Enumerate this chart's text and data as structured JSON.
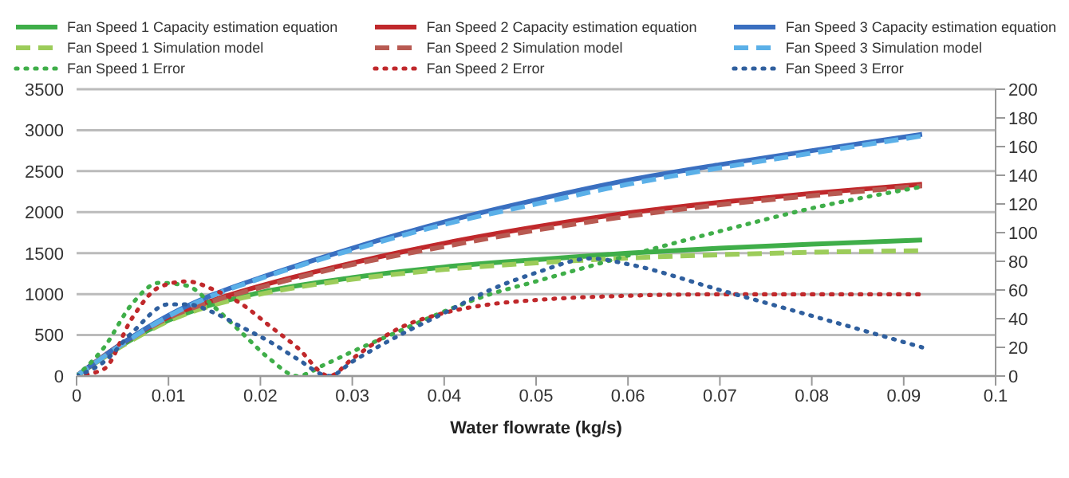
{
  "chart_data": {
    "type": "line",
    "xlabel": "Water flowrate (kg/s)",
    "xlim": [
      0,
      0.1
    ],
    "xticks": [
      0,
      0.01,
      0.02,
      0.03,
      0.04,
      0.05,
      0.06,
      0.07,
      0.08,
      0.09,
      0.1
    ],
    "ylim": [
      0,
      3500
    ],
    "yticks": [
      0,
      500,
      1000,
      1500,
      2000,
      2500,
      3000,
      3500
    ],
    "y2lim": [
      0,
      200
    ],
    "y2ticks": [
      0,
      20,
      40,
      60,
      80,
      100,
      120,
      140,
      160,
      180,
      200
    ],
    "grid": "y",
    "legend": "top",
    "marker": "none",
    "series": [
      {
        "name": "Fan Speed 1 Capacity estimation equation",
        "color": "#3fae49",
        "line_style": "solid",
        "x": [
          0,
          0.005,
          0.01,
          0.015,
          0.02,
          0.03,
          0.04,
          0.05,
          0.06,
          0.07,
          0.08,
          0.092
        ],
        "values": [
          0,
          380,
          680,
          880,
          1020,
          1200,
          1330,
          1420,
          1500,
          1560,
          1610,
          1660
        ]
      },
      {
        "name": "Fan Speed 2 Capacity estimation equation",
        "color": "#c0282b",
        "line_style": "solid",
        "x": [
          0,
          0.005,
          0.01,
          0.015,
          0.02,
          0.03,
          0.04,
          0.05,
          0.06,
          0.07,
          0.08,
          0.092
        ],
        "values": [
          0,
          400,
          720,
          930,
          1100,
          1380,
          1620,
          1820,
          1990,
          2120,
          2230,
          2340
        ]
      },
      {
        "name": "Fan Speed 3 Capacity estimation equation",
        "color": "#3a6fc0",
        "line_style": "solid",
        "x": [
          0,
          0.005,
          0.01,
          0.015,
          0.02,
          0.03,
          0.04,
          0.05,
          0.06,
          0.07,
          0.08,
          0.092
        ],
        "values": [
          0,
          400,
          740,
          1000,
          1200,
          1560,
          1880,
          2150,
          2390,
          2580,
          2750,
          2950
        ]
      },
      {
        "name": "Fan Speed 1 Simulation model",
        "color": "#9ccc5a",
        "line_style": "dashed",
        "x": [
          0,
          0.005,
          0.01,
          0.015,
          0.02,
          0.03,
          0.04,
          0.05,
          0.06,
          0.07,
          0.08,
          0.092
        ],
        "values": [
          0,
          370,
          670,
          870,
          1000,
          1180,
          1300,
          1380,
          1440,
          1480,
          1510,
          1530
        ]
      },
      {
        "name": "Fan Speed 2 Simulation model",
        "color": "#b85a52",
        "line_style": "dashed",
        "x": [
          0,
          0.005,
          0.01,
          0.015,
          0.02,
          0.03,
          0.04,
          0.05,
          0.06,
          0.07,
          0.08,
          0.092
        ],
        "values": [
          0,
          390,
          710,
          920,
          1080,
          1360,
          1580,
          1780,
          1950,
          2090,
          2200,
          2320
        ]
      },
      {
        "name": "Fan Speed 3 Simulation model",
        "color": "#5bb0e8",
        "line_style": "dashed",
        "x": [
          0,
          0.005,
          0.01,
          0.015,
          0.02,
          0.03,
          0.04,
          0.05,
          0.06,
          0.07,
          0.08,
          0.092
        ],
        "values": [
          0,
          390,
          730,
          990,
          1190,
          1540,
          1850,
          2100,
          2340,
          2540,
          2720,
          2930
        ]
      },
      {
        "name": "Fan Speed 1 Error",
        "color": "#3fae49",
        "line_style": "dotted",
        "axis": "y2",
        "x": [
          0,
          0.003,
          0.006,
          0.009,
          0.012,
          0.015,
          0.018,
          0.021,
          0.024,
          0.027,
          0.03,
          0.035,
          0.04,
          0.045,
          0.05,
          0.06,
          0.07,
          0.08,
          0.092
        ],
        "values": [
          0,
          20,
          50,
          65,
          63,
          48,
          30,
          12,
          0,
          8,
          17,
          31,
          45,
          57,
          66,
          84,
          101,
          117,
          132
        ]
      },
      {
        "name": "Fan Speed 2 Error",
        "color": "#c0282b",
        "line_style": "dotted",
        "axis": "y2",
        "x": [
          0,
          0.003,
          0.006,
          0.009,
          0.012,
          0.015,
          0.018,
          0.021,
          0.024,
          0.0275,
          0.03,
          0.035,
          0.04,
          0.045,
          0.05,
          0.06,
          0.07,
          0.08,
          0.092
        ],
        "values": [
          0,
          5,
          40,
          62,
          66,
          60,
          50,
          35,
          20,
          0,
          12,
          33,
          44,
          50,
          53,
          56,
          57,
          57,
          57
        ]
      },
      {
        "name": "Fan Speed 3 Error",
        "color": "#2f5f9e",
        "line_style": "dotted",
        "axis": "y2",
        "x": [
          0,
          0.003,
          0.006,
          0.01,
          0.012,
          0.015,
          0.018,
          0.021,
          0.024,
          0.0275,
          0.03,
          0.035,
          0.04,
          0.045,
          0.05,
          0.056,
          0.06,
          0.07,
          0.08,
          0.092
        ],
        "values": [
          0,
          10,
          30,
          50,
          50,
          44,
          34,
          24,
          12,
          0,
          10,
          28,
          44,
          60,
          72,
          82,
          78,
          60,
          42,
          20
        ]
      }
    ]
  }
}
